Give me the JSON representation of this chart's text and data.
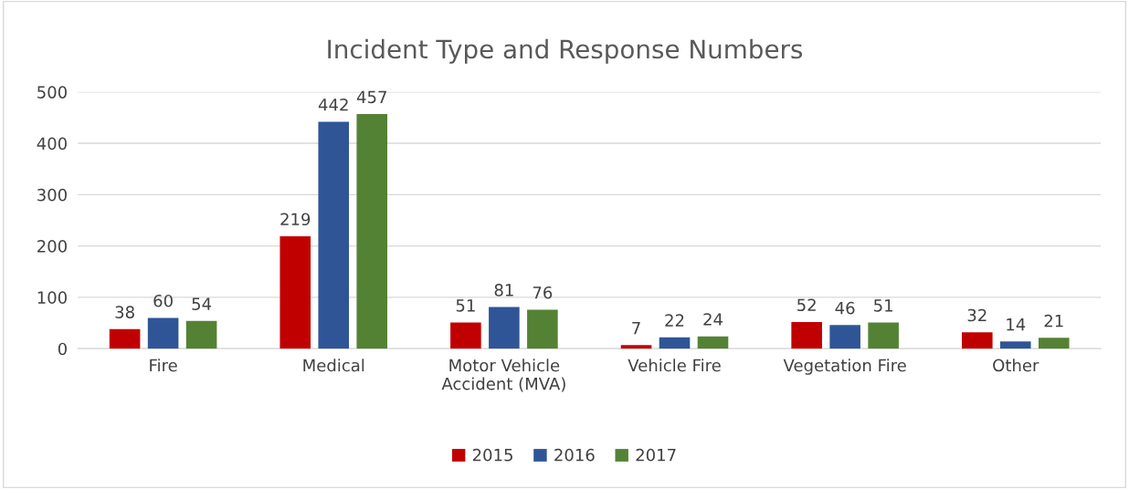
{
  "chart_data": {
    "type": "bar",
    "title": "Incident Type and Response Numbers",
    "categories": [
      "Fire",
      "Medical",
      "Motor Vehicle Accident (MVA)",
      "Vehicle Fire",
      "Vegetation Fire",
      "Other"
    ],
    "series": [
      {
        "name": "2015",
        "color": "#c00000",
        "values": [
          38,
          219,
          51,
          7,
          52,
          32
        ]
      },
      {
        "name": "2016",
        "color": "#2f5597",
        "values": [
          60,
          442,
          81,
          22,
          46,
          14
        ]
      },
      {
        "name": "2017",
        "color": "#548235",
        "values": [
          54,
          457,
          76,
          24,
          51,
          21
        ]
      }
    ],
    "ylim": [
      0,
      500
    ],
    "yticks": [
      0,
      100,
      200,
      300,
      400,
      500
    ],
    "grid": "y",
    "legend": "bottom",
    "data_labels": true
  }
}
